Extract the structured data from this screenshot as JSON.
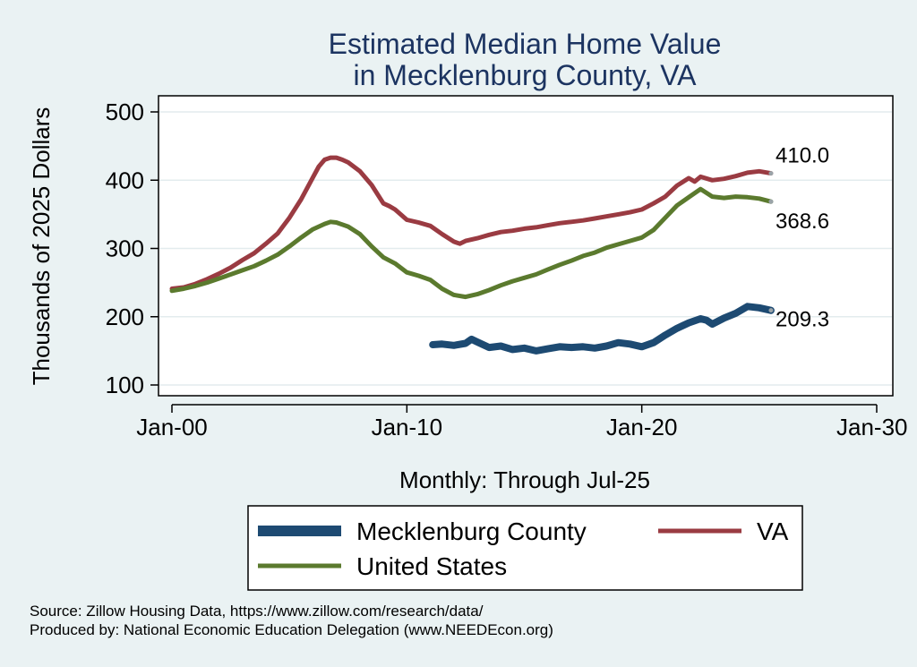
{
  "chart_data": {
    "type": "line",
    "title": [
      "Estimated Median Home Value",
      "in Mecklenburg County, VA"
    ],
    "ylabel": "Thousands of 2025 Dollars",
    "xlabel": "Monthly: Through Jul-25",
    "ylim": [
      90,
      510
    ],
    "yticks": [
      100,
      200,
      300,
      400,
      500
    ],
    "xlim": [
      2000.0,
      2030.0
    ],
    "xticks": [
      {
        "x": 2000,
        "label": "Jan-00"
      },
      {
        "x": 2010,
        "label": "Jan-10"
      },
      {
        "x": 2020,
        "label": "Jan-20"
      },
      {
        "x": 2030,
        "label": "Jan-30"
      }
    ],
    "grid": true,
    "legend_position": "bottom",
    "series": [
      {
        "name": "VA",
        "color": "#9a3b42",
        "end_label": "410.0",
        "points": [
          [
            2000.0,
            241
          ],
          [
            2000.5,
            243
          ],
          [
            2001.0,
            248
          ],
          [
            2001.5,
            255
          ],
          [
            2002.0,
            263
          ],
          [
            2002.5,
            272
          ],
          [
            2003.0,
            283
          ],
          [
            2003.5,
            293
          ],
          [
            2004.0,
            307
          ],
          [
            2004.5,
            322
          ],
          [
            2005.0,
            345
          ],
          [
            2005.5,
            372
          ],
          [
            2006.0,
            404
          ],
          [
            2006.25,
            420
          ],
          [
            2006.5,
            430
          ],
          [
            2006.75,
            433
          ],
          [
            2007.0,
            433
          ],
          [
            2007.25,
            430
          ],
          [
            2007.5,
            426
          ],
          [
            2008.0,
            413
          ],
          [
            2008.5,
            393
          ],
          [
            2009.0,
            366
          ],
          [
            2009.25,
            362
          ],
          [
            2009.5,
            357
          ],
          [
            2010.0,
            342
          ],
          [
            2010.5,
            338
          ],
          [
            2011.0,
            333
          ],
          [
            2011.5,
            321
          ],
          [
            2012.0,
            310
          ],
          [
            2012.25,
            307
          ],
          [
            2012.5,
            311
          ],
          [
            2013.0,
            315
          ],
          [
            2013.5,
            320
          ],
          [
            2014.0,
            324
          ],
          [
            2014.5,
            326
          ],
          [
            2015.0,
            329
          ],
          [
            2015.5,
            331
          ],
          [
            2016.0,
            334
          ],
          [
            2016.5,
            337
          ],
          [
            2017.0,
            339
          ],
          [
            2017.5,
            341
          ],
          [
            2018.0,
            344
          ],
          [
            2018.5,
            347
          ],
          [
            2019.0,
            350
          ],
          [
            2019.5,
            353
          ],
          [
            2020.0,
            357
          ],
          [
            2020.5,
            366
          ],
          [
            2021.0,
            376
          ],
          [
            2021.5,
            392
          ],
          [
            2022.0,
            403
          ],
          [
            2022.25,
            398
          ],
          [
            2022.5,
            405
          ],
          [
            2023.0,
            400
          ],
          [
            2023.5,
            402
          ],
          [
            2024.0,
            406
          ],
          [
            2024.5,
            411
          ],
          [
            2025.0,
            413
          ],
          [
            2025.5,
            410
          ]
        ]
      },
      {
        "name": "United States",
        "color": "#5b7a2e",
        "end_label": "368.6",
        "points": [
          [
            2000.0,
            238
          ],
          [
            2000.5,
            241
          ],
          [
            2001.0,
            245
          ],
          [
            2001.5,
            250
          ],
          [
            2002.0,
            256
          ],
          [
            2002.5,
            262
          ],
          [
            2003.0,
            268
          ],
          [
            2003.5,
            274
          ],
          [
            2004.0,
            282
          ],
          [
            2004.5,
            291
          ],
          [
            2005.0,
            303
          ],
          [
            2005.5,
            316
          ],
          [
            2006.0,
            328
          ],
          [
            2006.5,
            336
          ],
          [
            2006.75,
            339
          ],
          [
            2007.0,
            338
          ],
          [
            2007.5,
            332
          ],
          [
            2008.0,
            321
          ],
          [
            2008.5,
            303
          ],
          [
            2009.0,
            287
          ],
          [
            2009.5,
            278
          ],
          [
            2010.0,
            265
          ],
          [
            2010.5,
            260
          ],
          [
            2011.0,
            254
          ],
          [
            2011.5,
            241
          ],
          [
            2012.0,
            232
          ],
          [
            2012.5,
            229
          ],
          [
            2013.0,
            233
          ],
          [
            2013.5,
            239
          ],
          [
            2014.0,
            246
          ],
          [
            2014.5,
            252
          ],
          [
            2015.0,
            257
          ],
          [
            2015.5,
            262
          ],
          [
            2016.0,
            269
          ],
          [
            2016.5,
            276
          ],
          [
            2017.0,
            282
          ],
          [
            2017.5,
            289
          ],
          [
            2018.0,
            294
          ],
          [
            2018.5,
            301
          ],
          [
            2019.0,
            306
          ],
          [
            2019.5,
            311
          ],
          [
            2020.0,
            316
          ],
          [
            2020.5,
            327
          ],
          [
            2021.0,
            345
          ],
          [
            2021.5,
            363
          ],
          [
            2022.0,
            375
          ],
          [
            2022.5,
            387
          ],
          [
            2023.0,
            376
          ],
          [
            2023.5,
            374
          ],
          [
            2024.0,
            376
          ],
          [
            2024.5,
            375
          ],
          [
            2025.0,
            373
          ],
          [
            2025.5,
            368.6
          ]
        ]
      },
      {
        "name": "Mecklenburg County",
        "color": "#1d4a72",
        "end_label": "209.3",
        "points": [
          [
            2011.1,
            159
          ],
          [
            2011.5,
            160
          ],
          [
            2012.0,
            158
          ],
          [
            2012.5,
            161
          ],
          [
            2012.75,
            167
          ],
          [
            2013.0,
            163
          ],
          [
            2013.5,
            155
          ],
          [
            2014.0,
            157
          ],
          [
            2014.5,
            152
          ],
          [
            2015.0,
            154
          ],
          [
            2015.5,
            150
          ],
          [
            2016.0,
            153
          ],
          [
            2016.5,
            156
          ],
          [
            2017.0,
            155
          ],
          [
            2017.5,
            156
          ],
          [
            2018.0,
            154
          ],
          [
            2018.5,
            157
          ],
          [
            2019.0,
            162
          ],
          [
            2019.5,
            160
          ],
          [
            2020.0,
            156
          ],
          [
            2020.5,
            162
          ],
          [
            2021.0,
            173
          ],
          [
            2021.5,
            183
          ],
          [
            2022.0,
            191
          ],
          [
            2022.5,
            197
          ],
          [
            2022.75,
            195
          ],
          [
            2023.0,
            189
          ],
          [
            2023.5,
            198
          ],
          [
            2024.0,
            205
          ],
          [
            2024.5,
            215
          ],
          [
            2025.0,
            213
          ],
          [
            2025.5,
            209.3
          ]
        ]
      }
    ]
  },
  "legend": {
    "items": [
      {
        "name": "Mecklenburg County",
        "color": "#1d4a72"
      },
      {
        "name": "VA",
        "color": "#9a3b42"
      },
      {
        "name": "United States",
        "color": "#5b7a2e"
      }
    ]
  },
  "source": {
    "line1": "Source: Zillow Housing Data, https://www.zillow.com/research/data/",
    "line2": "Produced by: National Economic Education Delegation (www.NEEDEcon.org)"
  }
}
